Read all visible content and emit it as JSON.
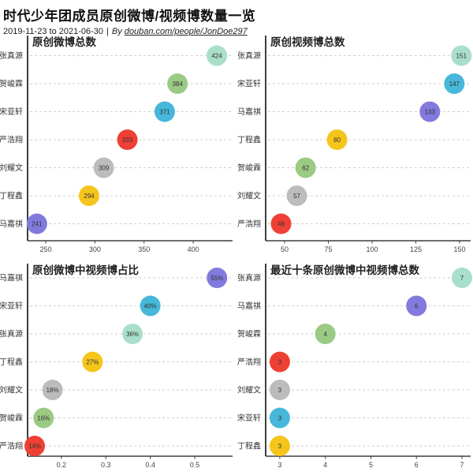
{
  "header": {
    "title": "时代少年团成员原创微博/视频博数量一览",
    "date_range": "2019-11-23 to 2021-06-30",
    "separator": "|",
    "by_label": "By",
    "author_link": "douban.com/people/JonDoe297"
  },
  "member_colors": {
    "张真源": "#a9dfca",
    "贺峻霖": "#9bca84",
    "宋亚轩": "#47b7da",
    "严浩翔": "#ee4034",
    "刘耀文": "#bcbcbc",
    "丁程鑫": "#f5c51b",
    "马嘉祺": "#837add"
  },
  "style": {
    "axis_color": "#3f3f3f",
    "grid_color": "#cfcfcf",
    "label_color": "#333333",
    "tick_color": "#444444",
    "title_color": "#222222",
    "bubble_text_color": "#333333"
  },
  "chart_data": [
    {
      "type": "scatter",
      "title": "原创微博总数",
      "categories": [
        "张真源",
        "贺峻霖",
        "宋亚轩",
        "严浩翔",
        "刘耀文",
        "丁程鑫",
        "马嘉祺"
      ],
      "values": [
        424,
        384,
        371,
        333,
        309,
        294,
        241
      ],
      "labels": [
        "424",
        "384",
        "371",
        "333",
        "309",
        "294",
        "241"
      ],
      "xticks": [
        250,
        300,
        350,
        400
      ],
      "xtick_labels": [
        "250",
        "300",
        "350",
        "400"
      ],
      "xlim": [
        231.5,
        440
      ],
      "grid": "horizontal-dashed",
      "legend": "none"
    },
    {
      "type": "scatter",
      "title": "原创视频博总数",
      "categories": [
        "张真源",
        "宋亚轩",
        "马嘉祺",
        "丁程鑫",
        "贺峻霖",
        "刘耀文",
        "严浩翔"
      ],
      "values": [
        151,
        147,
        133,
        80,
        62,
        57,
        48
      ],
      "labels": [
        "151",
        "147",
        "133",
        "80",
        "62",
        "57",
        "48"
      ],
      "xticks": [
        50,
        75,
        100,
        125,
        150
      ],
      "xtick_labels": [
        "50",
        "75",
        "100",
        "125",
        "150"
      ],
      "xlim": [
        39.2,
        156.3
      ],
      "grid": "horizontal-dashed",
      "legend": "none"
    },
    {
      "type": "scatter",
      "title": "原创微博中视频博占比",
      "categories": [
        "马嘉祺",
        "宋亚轩",
        "张真源",
        "丁程鑫",
        "刘耀文",
        "贺峻霖",
        "严浩翔"
      ],
      "values": [
        0.55,
        0.4,
        0.36,
        0.27,
        0.18,
        0.16,
        0.14
      ],
      "labels": [
        "55%",
        "40%",
        "36%",
        "27%",
        "18%",
        "16%",
        "14%"
      ],
      "xticks": [
        0.2,
        0.3,
        0.4,
        0.5
      ],
      "xtick_labels": [
        "0.2",
        "0.3",
        "0.4",
        "0.5"
      ],
      "xlim": [
        0.124,
        0.585
      ],
      "grid": "horizontal-dashed",
      "legend": "none"
    },
    {
      "type": "scatter",
      "title": "最近十条原创微博中视频博总数",
      "categories": [
        "张真源",
        "马嘉祺",
        "贺峻霖",
        "严浩翔",
        "刘耀文",
        "宋亚轩",
        "丁程鑫"
      ],
      "values": [
        7,
        6,
        4,
        3,
        3,
        3,
        3
      ],
      "labels": [
        "7",
        "6",
        "4",
        "3",
        "3",
        "3",
        "3"
      ],
      "xticks": [
        3,
        4,
        5,
        6,
        7
      ],
      "xtick_labels": [
        "3",
        "4",
        "5",
        "6",
        "7"
      ],
      "xlim": [
        2.69,
        7.19
      ],
      "grid": "horizontal-dashed",
      "legend": "none"
    }
  ]
}
